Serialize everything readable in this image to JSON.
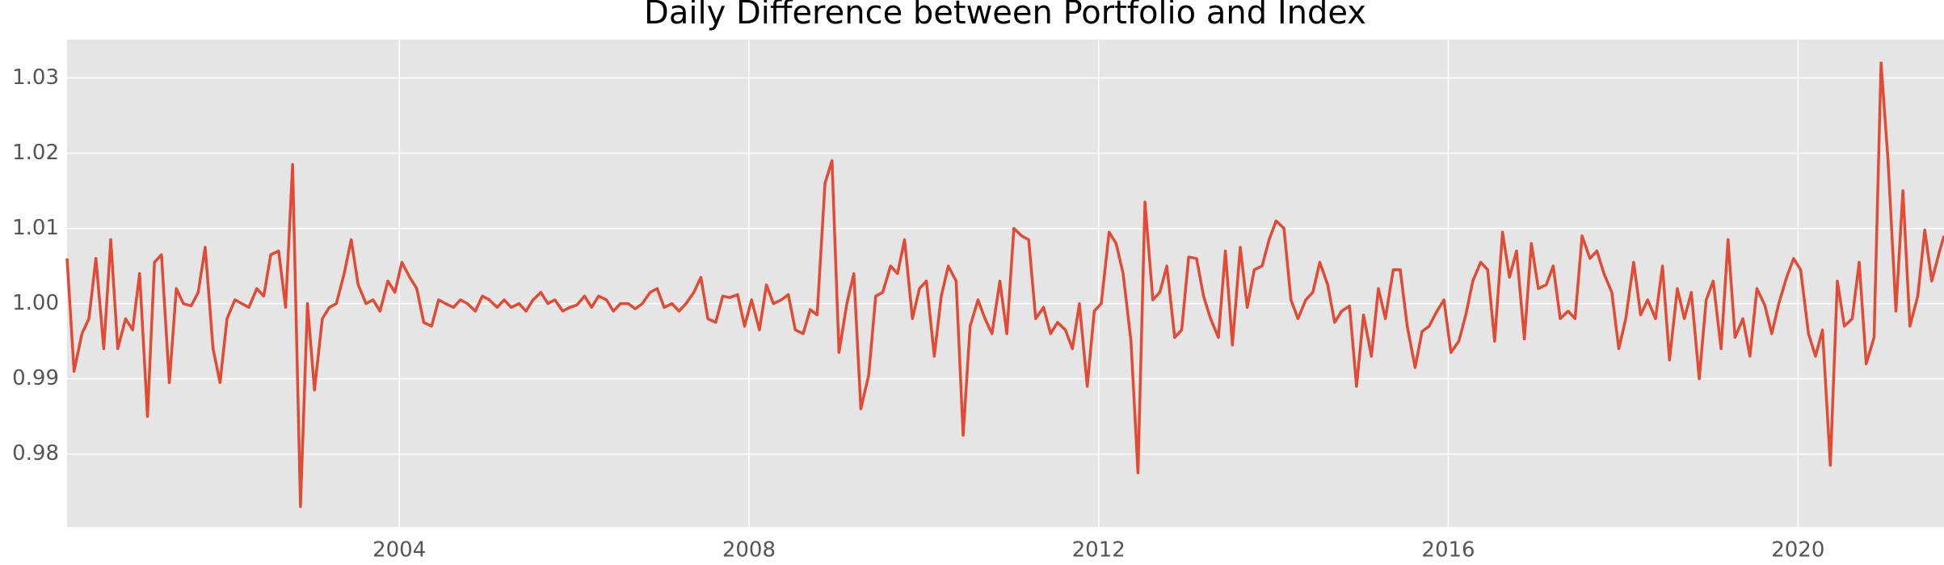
{
  "chart_data": {
    "type": "line",
    "title": "Daily Difference between Portfolio and Index",
    "x": [
      2000.2,
      2000.28,
      2000.37,
      2000.45,
      2000.53,
      2000.62,
      2000.7,
      2000.78,
      2000.87,
      2000.95,
      2001.03,
      2001.12,
      2001.2,
      2001.28,
      2001.37,
      2001.45,
      2001.53,
      2001.62,
      2001.7,
      2001.78,
      2001.87,
      2001.95,
      2002.03,
      2002.12,
      2002.2,
      2002.28,
      2002.37,
      2002.45,
      2002.53,
      2002.62,
      2002.7,
      2002.78,
      2002.87,
      2002.95,
      2003.03,
      2003.12,
      2003.2,
      2003.28,
      2003.37,
      2003.45,
      2003.53,
      2003.62,
      2003.7,
      2003.78,
      2003.87,
      2003.95,
      2004.03,
      2004.12,
      2004.2,
      2004.28,
      2004.37,
      2004.45,
      2004.53,
      2004.62,
      2004.7,
      2004.78,
      2004.87,
      2004.95,
      2005.03,
      2005.12,
      2005.2,
      2005.28,
      2005.37,
      2005.45,
      2005.53,
      2005.62,
      2005.7,
      2005.78,
      2005.87,
      2005.95,
      2006.03,
      2006.12,
      2006.2,
      2006.28,
      2006.37,
      2006.45,
      2006.53,
      2006.62,
      2006.7,
      2006.78,
      2006.87,
      2006.95,
      2007.03,
      2007.12,
      2007.2,
      2007.28,
      2007.37,
      2007.45,
      2007.53,
      2007.62,
      2007.7,
      2007.78,
      2007.87,
      2007.95,
      2008.03,
      2008.12,
      2008.2,
      2008.28,
      2008.37,
      2008.45,
      2008.53,
      2008.62,
      2008.7,
      2008.78,
      2008.87,
      2008.95,
      2009.03,
      2009.12,
      2009.2,
      2009.28,
      2009.37,
      2009.45,
      2009.53,
      2009.62,
      2009.7,
      2009.78,
      2009.87,
      2009.95,
      2010.03,
      2010.12,
      2010.2,
      2010.28,
      2010.37,
      2010.45,
      2010.53,
      2010.62,
      2010.7,
      2010.78,
      2010.87,
      2010.95,
      2011.03,
      2011.12,
      2011.2,
      2011.28,
      2011.37,
      2011.45,
      2011.53,
      2011.62,
      2011.7,
      2011.78,
      2011.87,
      2011.95,
      2012.03,
      2012.12,
      2012.2,
      2012.28,
      2012.37,
      2012.45,
      2012.53,
      2012.62,
      2012.7,
      2012.78,
      2012.87,
      2012.95,
      2013.03,
      2013.12,
      2013.2,
      2013.28,
      2013.37,
      2013.45,
      2013.53,
      2013.62,
      2013.7,
      2013.78,
      2013.87,
      2013.95,
      2014.03,
      2014.12,
      2014.2,
      2014.28,
      2014.37,
      2014.45,
      2014.53,
      2014.62,
      2014.7,
      2014.78,
      2014.87,
      2014.95,
      2015.03,
      2015.12,
      2015.2,
      2015.28,
      2015.37,
      2015.45,
      2015.53,
      2015.62,
      2015.7,
      2015.78,
      2015.87,
      2015.95,
      2016.03,
      2016.12,
      2016.2,
      2016.28,
      2016.37,
      2016.45,
      2016.53,
      2016.62,
      2016.7,
      2016.78,
      2016.87,
      2016.95,
      2017.03,
      2017.12,
      2017.2,
      2017.28,
      2017.37,
      2017.45,
      2017.53,
      2017.62,
      2017.7,
      2017.78,
      2017.87,
      2017.95,
      2018.03,
      2018.12,
      2018.2,
      2018.28,
      2018.37,
      2018.45,
      2018.53,
      2018.62,
      2018.7,
      2018.78,
      2018.87,
      2018.95,
      2019.03,
      2019.12,
      2019.2,
      2019.28,
      2019.37,
      2019.45,
      2019.53,
      2019.62,
      2019.7,
      2019.78,
      2019.87,
      2019.95,
      2020.03,
      2020.12,
      2020.2,
      2020.28,
      2020.37,
      2020.45,
      2020.53,
      2020.62,
      2020.7,
      2020.78,
      2020.87,
      2020.95,
      2021.03,
      2021.12,
      2021.2,
      2021.28,
      2021.37,
      2021.45,
      2021.53,
      2021.62,
      2021.67
    ],
    "series": [
      {
        "color": "#e24a33",
        "values": [
          1.006,
          0.991,
          0.996,
          0.998,
          1.006,
          0.994,
          1.0085,
          0.994,
          0.998,
          0.9965,
          1.004,
          0.985,
          1.0055,
          1.0065,
          0.9895,
          1.002,
          1.0,
          0.9997,
          1.0015,
          1.0075,
          0.994,
          0.9895,
          0.998,
          1.0005,
          1.0,
          0.9995,
          1.002,
          1.001,
          1.0065,
          1.007,
          0.9995,
          1.0185,
          0.973,
          1.0,
          0.9885,
          0.998,
          0.9995,
          1.0,
          1.004,
          1.0085,
          1.0025,
          1.0,
          1.0005,
          0.999,
          1.003,
          1.0015,
          1.0055,
          1.0035,
          1.002,
          0.9975,
          0.997,
          1.0005,
          1.0,
          0.9995,
          1.0005,
          1.0,
          0.999,
          1.001,
          1.0005,
          0.9995,
          1.0005,
          0.9995,
          1.0,
          0.999,
          1.0005,
          1.0015,
          1.0,
          1.0005,
          0.999,
          0.9995,
          0.9998,
          1.001,
          0.9995,
          1.001,
          1.0005,
          0.999,
          1.0,
          1.0,
          0.9993,
          1.0,
          1.0015,
          1.002,
          0.9995,
          1.0,
          0.999,
          1.0,
          1.0015,
          1.0035,
          0.998,
          0.9975,
          1.001,
          1.0008,
          1.0012,
          0.997,
          1.0005,
          0.9965,
          1.0025,
          1.0,
          1.0005,
          1.0012,
          0.9965,
          0.996,
          0.9992,
          0.9985,
          1.016,
          1.019,
          0.9935,
          1.0,
          1.004,
          0.986,
          0.9905,
          1.001,
          1.0015,
          1.005,
          1.004,
          1.0085,
          0.998,
          1.002,
          1.003,
          0.993,
          1.001,
          1.005,
          1.003,
          0.9825,
          0.997,
          1.0005,
          0.998,
          0.996,
          1.003,
          0.996,
          1.01,
          1.009,
          1.0085,
          0.998,
          0.9995,
          0.996,
          0.9975,
          0.9965,
          0.994,
          1.0,
          0.989,
          0.999,
          1.0,
          1.0095,
          1.008,
          1.004,
          0.995,
          0.9775,
          1.0135,
          1.0005,
          1.0015,
          1.005,
          0.9955,
          0.9965,
          1.0062,
          1.006,
          1.001,
          0.998,
          0.9955,
          1.007,
          0.9945,
          1.0075,
          0.9995,
          1.0045,
          1.005,
          1.0085,
          1.011,
          1.01,
          1.0005,
          0.998,
          1.0005,
          1.0015,
          1.0055,
          1.0025,
          0.9975,
          0.999,
          0.9997,
          0.989,
          0.9985,
          0.993,
          1.002,
          0.998,
          1.0045,
          1.0045,
          0.997,
          0.9915,
          0.9963,
          0.997,
          0.999,
          1.0005,
          0.9935,
          0.995,
          0.9985,
          1.003,
          1.0055,
          1.0045,
          0.995,
          1.0095,
          1.0035,
          1.007,
          0.9953,
          1.008,
          1.002,
          1.0025,
          1.005,
          0.998,
          0.999,
          0.998,
          1.009,
          1.006,
          1.007,
          1.004,
          1.0015,
          0.994,
          0.998,
          1.0055,
          0.9985,
          1.0005,
          0.998,
          1.005,
          0.9925,
          1.002,
          0.998,
          1.0015,
          0.99,
          1.0005,
          1.003,
          0.994,
          1.0085,
          0.9955,
          0.998,
          0.993,
          1.002,
          0.9998,
          0.996,
          1.0,
          1.0035,
          1.006,
          1.0045,
          0.996,
          0.993,
          0.9965,
          0.9785,
          1.003,
          0.997,
          0.998,
          1.0055,
          0.992,
          0.9955,
          1.032,
          1.019,
          0.999,
          1.015,
          0.997,
          1.001,
          1.0098,
          1.003,
          1.007,
          1.009
        ]
      }
    ],
    "xlim": [
      2000.2,
      2021.67
    ],
    "ylim": [
      0.9703,
      1.0351
    ],
    "xticks": [
      2004,
      2008,
      2012,
      2016,
      2020
    ],
    "yticks": [
      0.98,
      0.99,
      {
        "value": 1,
        "label": "1.00"
      },
      1.01,
      1.02,
      1.03
    ],
    "grid": true
  }
}
